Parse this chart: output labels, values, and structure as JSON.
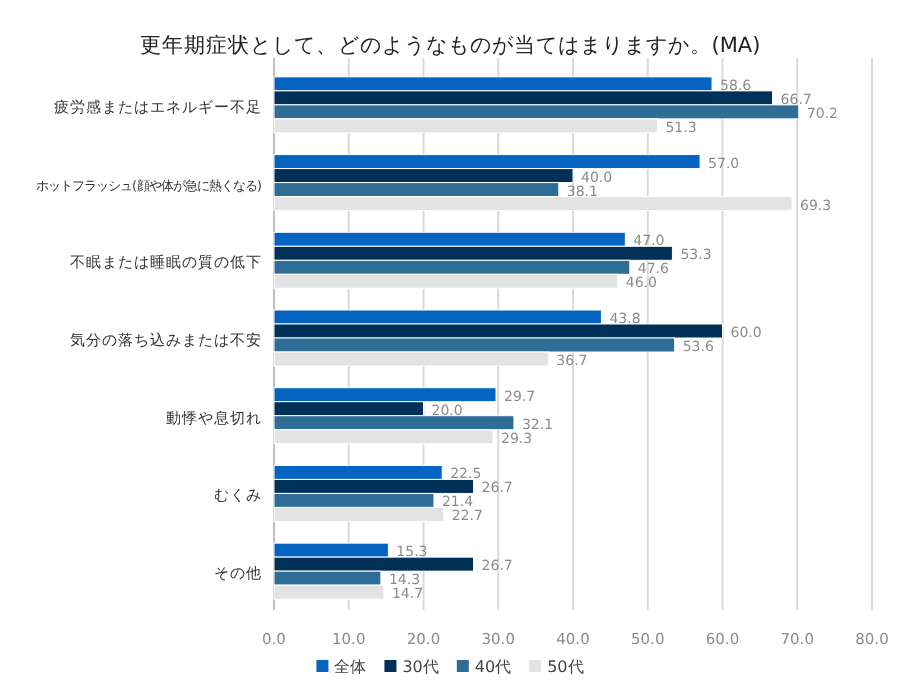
{
  "chart_data": {
    "type": "bar",
    "orientation": "horizontal",
    "title": "更年期症状として、どのようなものが当てはまりますか。(MA)",
    "categories": [
      "疲労感またはエネルギー不足",
      "ホットフラッシュ(顔や体が急に熱くなる)",
      "不眠または睡眠の質の低下",
      "気分の落ち込みまたは不安",
      "動悸や息切れ",
      "むくみ",
      "その他"
    ],
    "series": [
      {
        "name": "全体",
        "color": "#0563c1",
        "values": [
          58.6,
          57.0,
          47.0,
          43.8,
          29.7,
          22.5,
          15.3
        ],
        "value_labels": [
          "58.6",
          "57.0",
          "47.0",
          "43.8",
          "29.7",
          "22.5",
          "15.3"
        ]
      },
      {
        "name": "30代",
        "color": "#002f57",
        "values": [
          66.7,
          40.0,
          53.3,
          60.0,
          20.0,
          26.7,
          26.7
        ],
        "value_labels": [
          "66.7",
          "40.0",
          "53.3",
          "60.0",
          "20.0",
          "26.7",
          "26.7"
        ]
      },
      {
        "name": "40代",
        "color": "#2e6e96",
        "values": [
          70.2,
          38.1,
          47.6,
          53.6,
          32.1,
          21.4,
          14.3
        ],
        "value_labels": [
          "70.2",
          "38.1",
          "47.6",
          "53.6",
          "32.1",
          "21.4",
          "14.3"
        ]
      },
      {
        "name": "50代",
        "color": "#e3e3e3",
        "values": [
          51.3,
          69.3,
          46.0,
          36.7,
          29.3,
          22.7,
          14.7
        ],
        "value_labels": [
          "51.3",
          "69.3",
          "46.0",
          "36.7",
          "29.3",
          "22.7",
          "14.7"
        ]
      }
    ],
    "xlim": [
      0,
      80
    ],
    "xticks": [
      {
        "value": 0,
        "label": "0.0"
      },
      {
        "value": 10,
        "label": "10.0"
      },
      {
        "value": 20,
        "label": "20.0"
      },
      {
        "value": 30,
        "label": "30.0"
      },
      {
        "value": 40,
        "label": "40.0"
      },
      {
        "value": 50,
        "label": "50.0"
      },
      {
        "value": 60,
        "label": "60.0"
      },
      {
        "value": 70,
        "label": "70.0"
      },
      {
        "value": 80,
        "label": "80.0"
      }
    ],
    "grid": "x",
    "legend": "bottom"
  }
}
